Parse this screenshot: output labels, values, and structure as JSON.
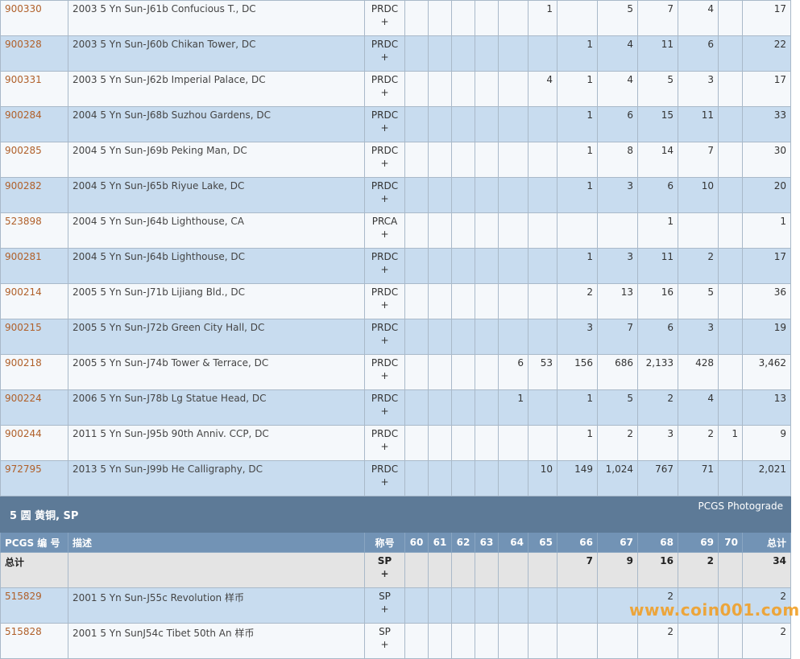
{
  "rows_top": [
    {
      "pcgs": "900330",
      "desc": "2003 5 Yn Sun-J61b Confucious T., DC",
      "cert": "PRDC",
      "plus": "+",
      "g60": "",
      "g61": "",
      "g62": "",
      "g63": "",
      "g64": "",
      "g65": "1",
      "g66": "",
      "g67": "5",
      "g68": "7",
      "g69": "4",
      "g70": "",
      "total": "17"
    },
    {
      "pcgs": "900328",
      "desc": "2003 5 Yn Sun-J60b Chikan Tower, DC",
      "cert": "PRDC",
      "plus": "+",
      "g60": "",
      "g61": "",
      "g62": "",
      "g63": "",
      "g64": "",
      "g65": "",
      "g66": "1",
      "g67": "4",
      "g68": "11",
      "g69": "6",
      "g70": "",
      "total": "22"
    },
    {
      "pcgs": "900331",
      "desc": "2003 5 Yn Sun-J62b Imperial Palace, DC",
      "cert": "PRDC",
      "plus": "+",
      "g60": "",
      "g61": "",
      "g62": "",
      "g63": "",
      "g64": "",
      "g65": "4",
      "g66": "1",
      "g67": "4",
      "g68": "5",
      "g69": "3",
      "g70": "",
      "total": "17"
    },
    {
      "pcgs": "900284",
      "desc": "2004 5 Yn Sun-J68b Suzhou Gardens, DC",
      "cert": "PRDC",
      "plus": "+",
      "g60": "",
      "g61": "",
      "g62": "",
      "g63": "",
      "g64": "",
      "g65": "",
      "g66": "1",
      "g67": "6",
      "g68": "15",
      "g69": "11",
      "g70": "",
      "total": "33"
    },
    {
      "pcgs": "900285",
      "desc": "2004 5 Yn Sun-J69b Peking Man, DC",
      "cert": "PRDC",
      "plus": "+",
      "g60": "",
      "g61": "",
      "g62": "",
      "g63": "",
      "g64": "",
      "g65": "",
      "g66": "1",
      "g67": "8",
      "g68": "14",
      "g69": "7",
      "g70": "",
      "total": "30"
    },
    {
      "pcgs": "900282",
      "desc": "2004 5 Yn Sun-J65b Riyue Lake, DC",
      "cert": "PRDC",
      "plus": "+",
      "g60": "",
      "g61": "",
      "g62": "",
      "g63": "",
      "g64": "",
      "g65": "",
      "g66": "1",
      "g67": "3",
      "g68": "6",
      "g69": "10",
      "g70": "",
      "total": "20"
    },
    {
      "pcgs": "523898",
      "desc": "2004 5 Yn Sun-J64b Lighthouse, CA",
      "cert": "PRCA",
      "plus": "+",
      "g60": "",
      "g61": "",
      "g62": "",
      "g63": "",
      "g64": "",
      "g65": "",
      "g66": "",
      "g67": "",
      "g68": "1",
      "g69": "",
      "g70": "",
      "total": "1"
    },
    {
      "pcgs": "900281",
      "desc": "2004 5 Yn Sun-J64b Lighthouse, DC",
      "cert": "PRDC",
      "plus": "+",
      "g60": "",
      "g61": "",
      "g62": "",
      "g63": "",
      "g64": "",
      "g65": "",
      "g66": "1",
      "g67": "3",
      "g68": "11",
      "g69": "2",
      "g70": "",
      "total": "17"
    },
    {
      "pcgs": "900214",
      "desc": "2005 5 Yn Sun-J71b Lijiang Bld., DC",
      "cert": "PRDC",
      "plus": "+",
      "g60": "",
      "g61": "",
      "g62": "",
      "g63": "",
      "g64": "",
      "g65": "",
      "g66": "2",
      "g67": "13",
      "g68": "16",
      "g69": "5",
      "g70": "",
      "total": "36"
    },
    {
      "pcgs": "900215",
      "desc": "2005 5 Yn Sun-J72b Green City Hall, DC",
      "cert": "PRDC",
      "plus": "+",
      "g60": "",
      "g61": "",
      "g62": "",
      "g63": "",
      "g64": "",
      "g65": "",
      "g66": "3",
      "g67": "7",
      "g68": "6",
      "g69": "3",
      "g70": "",
      "total": "19"
    },
    {
      "pcgs": "900218",
      "desc": "2005 5 Yn Sun-J74b Tower & Terrace, DC",
      "cert": "PRDC",
      "plus": "+",
      "g60": "",
      "g61": "",
      "g62": "",
      "g63": "",
      "g64": "6",
      "g65": "53",
      "g66": "156",
      "g67": "686",
      "g68": "2,133",
      "g69": "428",
      "g70": "",
      "total": "3,462"
    },
    {
      "pcgs": "900224",
      "desc": "2006 5 Yn Sun-J78b Lg Statue Head, DC",
      "cert": "PRDC",
      "plus": "+",
      "g60": "",
      "g61": "",
      "g62": "",
      "g63": "",
      "g64": "1",
      "g65": "",
      "g66": "1",
      "g67": "5",
      "g68": "2",
      "g69": "4",
      "g70": "",
      "total": "13"
    },
    {
      "pcgs": "900244",
      "desc": "2011 5 Yn Sun-J95b 90th Anniv. CCP, DC",
      "cert": "PRDC",
      "plus": "+",
      "g60": "",
      "g61": "",
      "g62": "",
      "g63": "",
      "g64": "",
      "g65": "",
      "g66": "1",
      "g67": "2",
      "g68": "3",
      "g69": "2",
      "g70": "1",
      "total": "9"
    },
    {
      "pcgs": "972795",
      "desc": "2013 5 Yn Sun-J99b He Calligraphy, DC",
      "cert": "PRDC",
      "plus": "+",
      "g60": "",
      "g61": "",
      "g62": "",
      "g63": "",
      "g64": "",
      "g65": "10",
      "g66": "149",
      "g67": "1,024",
      "g68": "767",
      "g69": "71",
      "g70": "",
      "total": "2,021"
    }
  ],
  "section": {
    "title": "5 圆 黄铜, SP",
    "photograde": "PCGS Photograde"
  },
  "header": {
    "pcgs": "PCGS 编 号",
    "desc": "描述",
    "cert": "称号",
    "g60": "60",
    "g61": "61",
    "g62": "62",
    "g63": "63",
    "g64": "64",
    "g65": "65",
    "g66": "66",
    "g67": "67",
    "g68": "68",
    "g69": "69",
    "g70": "70",
    "total": "总计"
  },
  "total_row": {
    "label": "总计",
    "cert": "SP",
    "plus": "+",
    "g60": "",
    "g61": "",
    "g62": "",
    "g63": "",
    "g64": "",
    "g65": "",
    "g66": "7",
    "g67": "9",
    "g68": "16",
    "g69": "2",
    "g70": "",
    "total": "34"
  },
  "rows_bottom": [
    {
      "pcgs": "515829",
      "desc": "2001 5 Yn Sun-J55c Revolution 样币",
      "cert": "SP",
      "plus": "+",
      "g60": "",
      "g61": "",
      "g62": "",
      "g63": "",
      "g64": "",
      "g65": "",
      "g66": "",
      "g67": "",
      "g68": "2",
      "g69": "",
      "g70": "",
      "total": "2"
    },
    {
      "pcgs": "515828",
      "desc": "2001 5 Yn SunJ54c Tibet 50th An 样币",
      "cert": "SP",
      "plus": "+",
      "g60": "",
      "g61": "",
      "g62": "",
      "g63": "",
      "g64": "",
      "g65": "",
      "g66": "",
      "g67": "",
      "g68": "2",
      "g69": "",
      "g70": "",
      "total": "2"
    }
  ],
  "watermark": "www.coin001.com"
}
